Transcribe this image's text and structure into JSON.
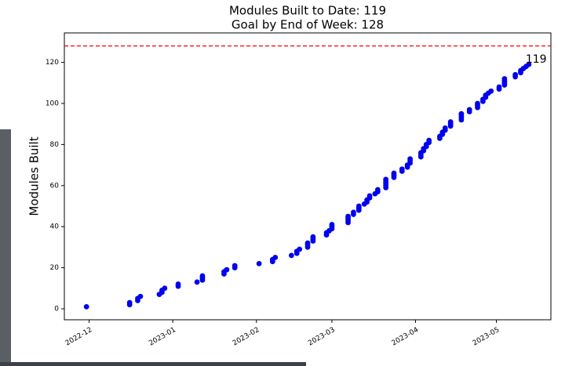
{
  "chart_data": {
    "type": "scatter",
    "title": "Modules Built to Date: 119",
    "subtitle": "Goal by End of Week: 128",
    "y_label": "Modules Built",
    "annotation": "119",
    "hline": {
      "value": 128,
      "color": "#ff0000",
      "style": "dashed"
    },
    "xlim": [
      19317.8,
      19498.2
    ],
    "xticks": [
      {
        "value": 19327,
        "label": "2022-12"
      },
      {
        "value": 19358,
        "label": "2023-01"
      },
      {
        "value": 19389,
        "label": "2023-02"
      },
      {
        "value": 19417,
        "label": "2023-03"
      },
      {
        "value": 19448,
        "label": "2023-04"
      },
      {
        "value": 19478,
        "label": "2023-05"
      }
    ],
    "ylim": [
      -5.35,
      134.35
    ],
    "yticks": [
      0,
      20,
      40,
      60,
      80,
      100,
      120
    ],
    "series": [
      {
        "color": "#0000ee",
        "x": [
          19326,
          19342,
          19342,
          19345,
          19345,
          19346,
          19353,
          19354,
          19354,
          19355,
          19360,
          19360,
          19367,
          19369,
          19369,
          19369,
          19377,
          19377,
          19378,
          19381,
          19381,
          19390,
          19395,
          19395,
          19396,
          19402,
          19404,
          19404,
          19405,
          19408,
          19408,
          19408,
          19410,
          19410,
          19410,
          19415,
          19415,
          19416,
          19417,
          19417,
          19417,
          19423,
          19423,
          19423,
          19423,
          19425,
          19425,
          19427,
          19427,
          19427,
          19429,
          19430,
          19430,
          19431,
          19431,
          19433,
          19434,
          19434,
          19437,
          19437,
          19437,
          19437,
          19437,
          19440,
          19440,
          19440,
          19443,
          19443,
          19445,
          19445,
          19446,
          19446,
          19446,
          19450,
          19450,
          19450,
          19451,
          19451,
          19452,
          19452,
          19453,
          19453,
          19457,
          19457,
          19458,
          19458,
          19459,
          19459,
          19461,
          19461,
          19461,
          19465,
          19465,
          19465,
          19465,
          19468,
          19468,
          19471,
          19471,
          19471,
          19473,
          19473,
          19474,
          19474,
          19475,
          19476,
          19479,
          19479,
          19481,
          19481,
          19481,
          19481,
          19485,
          19485,
          19487,
          19487,
          19488,
          19489,
          19490
        ],
        "values": [
          1,
          2,
          3,
          4,
          5,
          6,
          7,
          8,
          9,
          10,
          11,
          12,
          13,
          14,
          15,
          16,
          17,
          18,
          19,
          20,
          21,
          22,
          23,
          24,
          25,
          26,
          27,
          28,
          29,
          30,
          31,
          32,
          33,
          34,
          35,
          36,
          37,
          38,
          39,
          40,
          41,
          42,
          43,
          44,
          45,
          46,
          47,
          48,
          49,
          50,
          51,
          52,
          53,
          54,
          55,
          56,
          57,
          58,
          59,
          60,
          61,
          62,
          63,
          64,
          65,
          66,
          67,
          68,
          69,
          70,
          71,
          72,
          73,
          74,
          75,
          76,
          77,
          78,
          79,
          80,
          81,
          82,
          83,
          84,
          85,
          86,
          87,
          88,
          89,
          90,
          91,
          92,
          93,
          94,
          95,
          96,
          97,
          98,
          99,
          100,
          101,
          102,
          103,
          104,
          105,
          106,
          107,
          108,
          109,
          110,
          111,
          112,
          113,
          114,
          115,
          116,
          117,
          118,
          119
        ]
      }
    ]
  }
}
